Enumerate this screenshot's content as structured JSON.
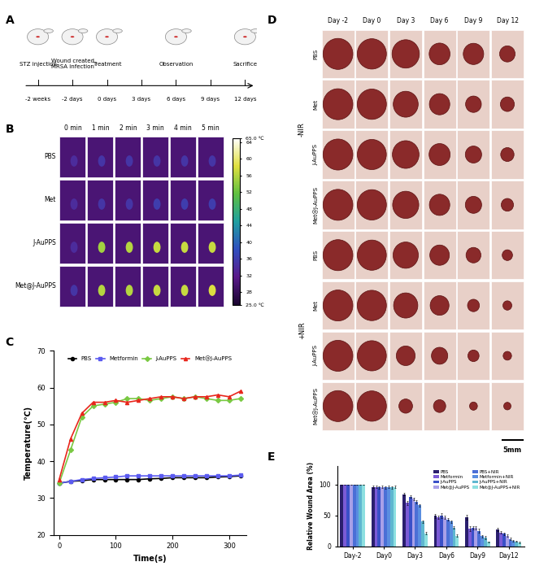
{
  "panel_labels": [
    "A",
    "B",
    "C",
    "D",
    "E"
  ],
  "timeline": {
    "times": [
      "-2 weeks",
      "-2 days",
      "0 days",
      "3 days",
      "6 days",
      "9 days",
      "12 days"
    ],
    "events": [
      {
        "label": "STZ injection",
        "time": "-2 weeks"
      },
      {
        "label": "Wound created\nMRSA infection",
        "time": "-2 days"
      },
      {
        "label": "Treatment",
        "time": "0 days"
      },
      {
        "label": "Observation",
        "time": "6 days"
      },
      {
        "label": "Sacrifice",
        "time": "12 days"
      }
    ]
  },
  "thermal_images": {
    "rows": [
      "PBS",
      "Met",
      "J-AuPPS",
      "Met@J-AuPPS"
    ],
    "columns": [
      "0 min",
      "1 min",
      "2 min",
      "3 min",
      "4 min",
      "5 min"
    ],
    "background_temperature": 30,
    "spot_temperatures": [
      [
        34,
        35,
        35,
        35,
        35,
        35
      ],
      [
        34,
        35,
        35,
        36,
        36,
        36
      ],
      [
        34,
        55,
        56,
        57,
        57,
        57
      ],
      [
        35,
        56,
        56,
        57,
        57,
        58
      ]
    ],
    "colorbar": {
      "range": [
        25,
        65
      ],
      "ticks": [
        {
          "value": 25,
          "label": "25.0 ℃"
        },
        28,
        32,
        36,
        40,
        44,
        48,
        52,
        56,
        60,
        64,
        {
          "value": 65,
          "label": "65.0 ℃"
        }
      ]
    }
  },
  "wound_photos": {
    "groups": [
      "-NIR",
      "+NIR"
    ],
    "rows": [
      "PBS",
      "Met",
      "J-AuPPS",
      "Met@J-AuPPS"
    ],
    "columns": [
      "Day -2",
      "Day 0",
      "Day 3",
      "Day 6",
      "Day 9",
      "Day 12"
    ],
    "scale_bar": "5mm"
  },
  "chart_data": [
    {
      "type": "line",
      "x_label": "Time(s)",
      "y_label": "Temperature(℃)",
      "x": [
        0,
        20,
        40,
        60,
        80,
        100,
        120,
        140,
        160,
        180,
        200,
        220,
        240,
        260,
        280,
        300,
        320
      ],
      "xlim": [
        -10,
        330
      ],
      "xticks": [
        0,
        100,
        200,
        300
      ],
      "ylim": [
        20,
        70
      ],
      "yticks": [
        20,
        30,
        40,
        50,
        60,
        70
      ],
      "legend": "upper center",
      "series": [
        {
          "name": "PBS",
          "color": "#000000",
          "marker": "circle",
          "values": [
            34,
            34.5,
            34.7,
            35,
            35,
            35,
            35,
            35,
            35.2,
            35.3,
            35.5,
            35.5,
            35.5,
            35.5,
            35.7,
            35.8,
            36
          ]
        },
        {
          "name": "Metformin",
          "color": "#5b5bf0",
          "marker": "square",
          "values": [
            34,
            34.5,
            35,
            35.3,
            35.5,
            35.7,
            36,
            36,
            36,
            36,
            36,
            36,
            36,
            36,
            36,
            36,
            36.2
          ]
        },
        {
          "name": "J-AuPPS",
          "color": "#7ac943",
          "marker": "diamond",
          "values": [
            34,
            43,
            52,
            55,
            55.5,
            56,
            57,
            57,
            56.5,
            57,
            57.5,
            57,
            57.5,
            57,
            56.5,
            56.5,
            57
          ]
        },
        {
          "name": "Met@J-AuPPS",
          "color": "#e8261c",
          "marker": "triangle",
          "values": [
            35,
            46,
            53,
            56,
            56,
            56.5,
            56,
            56.5,
            57,
            57.5,
            57.5,
            57,
            57.5,
            57.5,
            58,
            57.5,
            59
          ]
        }
      ]
    },
    {
      "type": "bar",
      "y_label": "Relative Wound Area (%)",
      "categories": [
        "Day-2",
        "Day0",
        "Day3",
        "Day6",
        "Day9",
        "Day12"
      ],
      "ylim": [
        0,
        130
      ],
      "yticks": [
        0,
        50,
        100
      ],
      "legend": "upper right",
      "series": [
        {
          "name": "PBS",
          "color": "#2a1f6e",
          "values": [
            100,
            96,
            84,
            49,
            47,
            27
          ],
          "errors": [
            0,
            2,
            2,
            3,
            4,
            3
          ]
        },
        {
          "name": "Metformin",
          "color": "#7b5bd6",
          "values": [
            100,
            96,
            70,
            47,
            28,
            22
          ],
          "errors": [
            0,
            2,
            3,
            3,
            4,
            2
          ]
        },
        {
          "name": "J-AuPPS",
          "color": "#3a50c8",
          "values": [
            100,
            95,
            80,
            50,
            30,
            20
          ],
          "errors": [
            0,
            2,
            2,
            4,
            3,
            2
          ]
        },
        {
          "name": "Met@J-AuPPS",
          "color": "#a9a0e8",
          "values": [
            100,
            96,
            77,
            47,
            30,
            17
          ],
          "errors": [
            0,
            2,
            2,
            3,
            3,
            2
          ]
        },
        {
          "name": "PBS+NIR",
          "color": "#4b6fd6",
          "values": [
            100,
            95,
            72,
            43,
            25,
            12
          ],
          "errors": [
            0,
            2,
            3,
            2,
            3,
            2
          ]
        },
        {
          "name": "Metformin+NIR",
          "color": "#5a8ee0",
          "values": [
            100,
            96,
            66,
            40,
            16,
            9
          ],
          "errors": [
            0,
            2,
            2,
            2,
            2,
            1
          ]
        },
        {
          "name": "J-AuPPS+NIR",
          "color": "#5fb7d0",
          "values": [
            100,
            95,
            40,
            30,
            14,
            8
          ],
          "errors": [
            0,
            2,
            2,
            2,
            2,
            1
          ]
        },
        {
          "name": "Met@J-AuPPS+NIR",
          "color": "#8de0e0",
          "values": [
            100,
            96,
            21,
            17,
            7,
            6
          ],
          "errors": [
            0,
            2,
            2,
            2,
            1,
            1
          ]
        }
      ]
    }
  ]
}
